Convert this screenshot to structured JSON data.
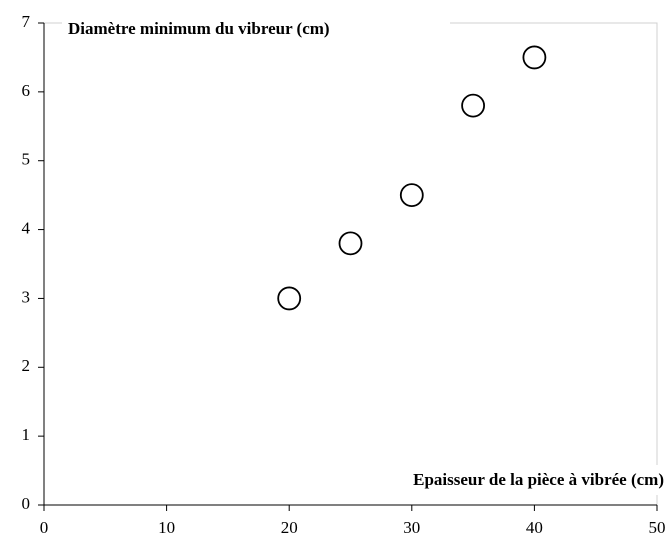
{
  "chart_data": {
    "type": "scatter",
    "xlabel": "Epaisseur de la pièce à vibrée (cm)",
    "ylabel": "Diamètre minimum du vibreur (cm)",
    "series": [
      {
        "color": "#000000",
        "x": [
          20,
          25,
          30,
          35,
          40
        ],
        "values": [
          3,
          3.8,
          4.5,
          5.8,
          6.5
        ]
      }
    ],
    "xlim": [
      0,
      50
    ],
    "xticks": [
      0,
      10,
      20,
      30,
      40,
      50
    ],
    "ylim": [
      0,
      7
    ],
    "yticks": [
      0,
      1,
      2,
      3,
      4,
      5,
      6,
      7
    ]
  }
}
